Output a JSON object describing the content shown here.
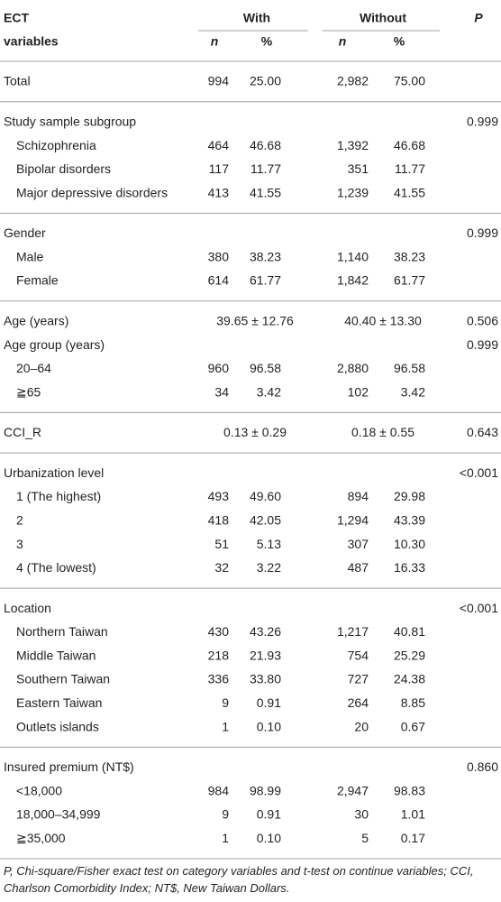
{
  "header": {
    "col0": [
      "ECT",
      "variables"
    ],
    "with": "With",
    "without": "Without",
    "p": "P",
    "sub": [
      "n",
      "%",
      "n",
      "%"
    ]
  },
  "sections": [
    {
      "rows": [
        {
          "label": "Total",
          "values": [
            "994",
            "25.00",
            "2,982",
            "75.00"
          ]
        }
      ]
    },
    {
      "rows": [
        {
          "label": "Study sample subgroup",
          "p": "0.999",
          "items": [
            {
              "label": "Schizophrenia",
              "values": [
                "464",
                "46.68",
                "1,392",
                "46.68"
              ]
            },
            {
              "label": "Bipolar disorders",
              "values": [
                "117",
                "11.77",
                "351",
                "11.77"
              ]
            },
            {
              "label": "Major depressive disorders",
              "values": [
                "413",
                "41.55",
                "1,239",
                "41.55"
              ]
            }
          ]
        }
      ]
    },
    {
      "rows": [
        {
          "label": "Gender",
          "p": "0.999",
          "items": [
            {
              "label": "Male",
              "values": [
                "380",
                "38.23",
                "1,140",
                "38.23"
              ]
            },
            {
              "label": "Female",
              "values": [
                "614",
                "61.77",
                "1,842",
                "61.77"
              ]
            }
          ]
        }
      ]
    },
    {
      "rows": [
        {
          "label": "Age (years)",
          "with": "39.65 ± 12.76",
          "without": "40.40 ± 13.30",
          "p": "0.506"
        },
        {
          "label": "Age group (years)",
          "p": "0.999",
          "items": [
            {
              "label": "20–64",
              "values": [
                "960",
                "96.58",
                "2,880",
                "96.58"
              ]
            },
            {
              "label": "≧65",
              "values": [
                "34",
                "3.42",
                "102",
                "3.42"
              ]
            }
          ]
        }
      ]
    },
    {
      "rows": [
        {
          "label": "CCI_R",
          "with": "0.13 ± 0.29",
          "without": "0.18 ± 0.55",
          "p": "0.643"
        }
      ]
    },
    {
      "rows": [
        {
          "label": "Urbanization level",
          "p": "<0.001",
          "items": [
            {
              "label": "1 (The highest)",
              "values": [
                "493",
                "49.60",
                "894",
                "29.98"
              ]
            },
            {
              "label": "2",
              "values": [
                "418",
                "42.05",
                "1,294",
                "43.39"
              ]
            },
            {
              "label": "3",
              "values": [
                "51",
                "5.13",
                "307",
                "10.30"
              ]
            },
            {
              "label": "4 (The lowest)",
              "values": [
                "32",
                "3.22",
                "487",
                "16.33"
              ]
            }
          ]
        }
      ]
    },
    {
      "rows": [
        {
          "label": "Location",
          "p": "<0.001",
          "items": [
            {
              "label": "Northern Taiwan",
              "values": [
                "430",
                "43.26",
                "1,217",
                "40.81"
              ]
            },
            {
              "label": "Middle Taiwan",
              "values": [
                "218",
                "21.93",
                "754",
                "25.29"
              ]
            },
            {
              "label": "Southern Taiwan",
              "values": [
                "336",
                "33.80",
                "727",
                "24.38"
              ]
            },
            {
              "label": "Eastern Taiwan",
              "values": [
                "9",
                "0.91",
                "264",
                "8.85"
              ]
            },
            {
              "label": "Outlets islands",
              "values": [
                "1",
                "0.10",
                "20",
                "0.67"
              ]
            }
          ]
        }
      ]
    },
    {
      "rows": [
        {
          "label": "Insured premium (NT$)",
          "p": "0.860",
          "items": [
            {
              "label": "<18,000",
              "values": [
                "984",
                "98.99",
                "2,947",
                "98.83"
              ]
            },
            {
              "label": "18,000–34,999",
              "values": [
                "9",
                "0.91",
                "30",
                "1.01"
              ]
            },
            {
              "label": "≧35,000",
              "values": [
                "1",
                "0.10",
                "5",
                "0.17"
              ]
            }
          ]
        }
      ]
    }
  ],
  "footnote": "P, Chi-square/Fisher exact test on category variables and t-test on continue variables; CCI, Charlson Comorbidity Index; NT$, New Taiwan Dollars."
}
